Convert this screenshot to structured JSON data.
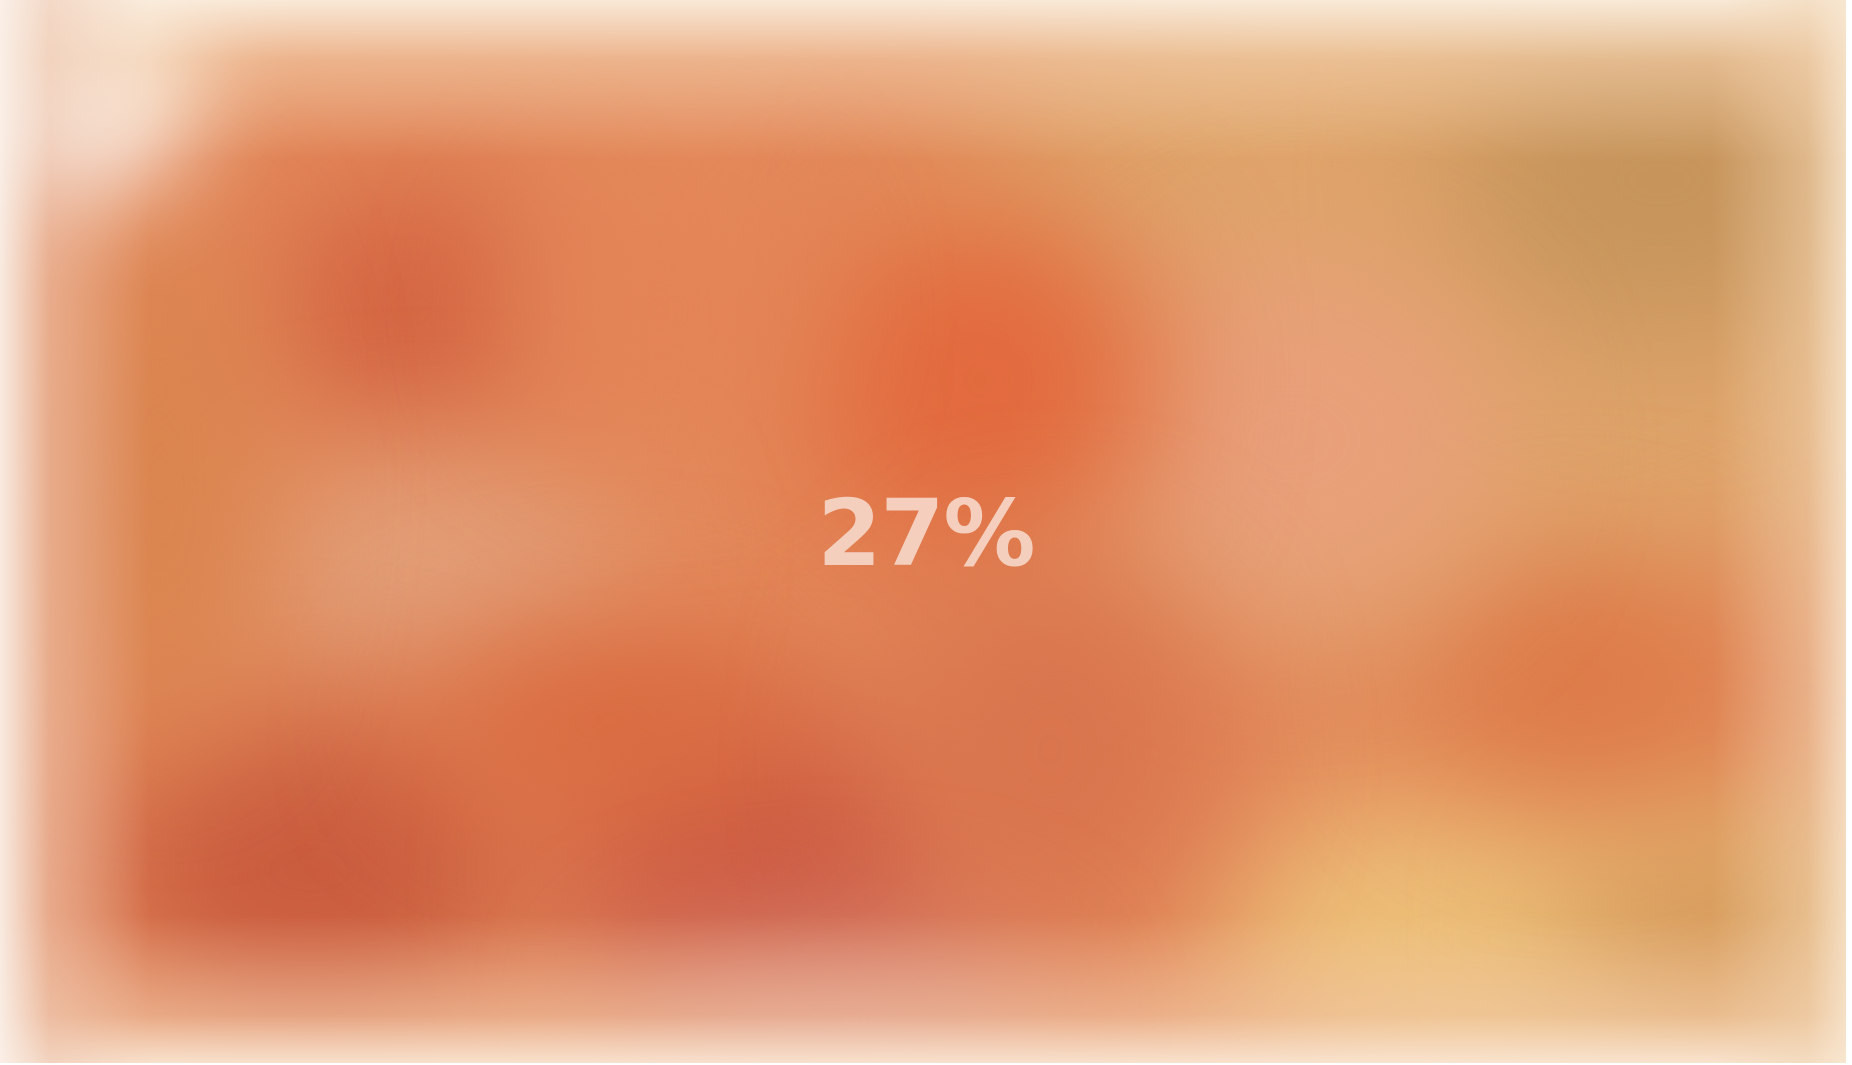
{
  "loading": {
    "progress_text": "27%",
    "progress_fraction": 0.27
  },
  "background": {
    "description_colors": {
      "base": "#e48a5b",
      "deep_red": "#cc5a40",
      "warm_orange": "#e27040",
      "peach": "#e8a070",
      "sand": "#ecc07a",
      "tan": "#c9955e",
      "edge_fade": "#faeee0"
    }
  }
}
